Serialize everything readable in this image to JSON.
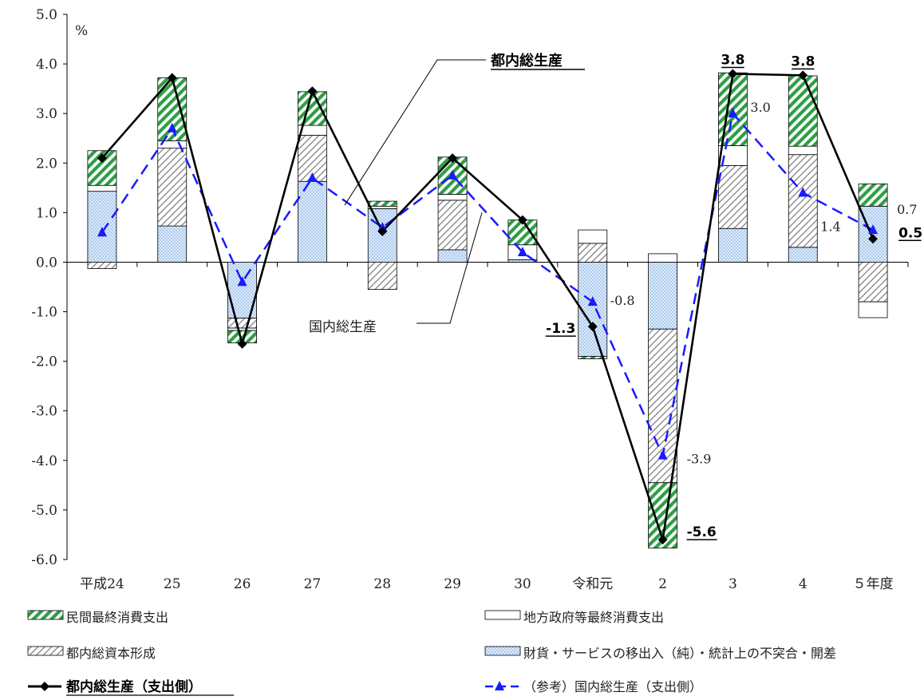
{
  "unit_label": "%",
  "colors": {
    "private_consumption": "#2e9e45",
    "government_consumption": "#ffffff",
    "capital_formation": "#9a9a9a",
    "net_exports": "#8ab4e8",
    "tokyo_line": "#000000",
    "national_line": "#1a1aff"
  },
  "chart_data": {
    "type": "bar",
    "stacked": true,
    "categories": [
      "平成24",
      "25",
      "26",
      "27",
      "28",
      "29",
      "30",
      "令和元",
      "2",
      "3",
      "4",
      "５年度"
    ],
    "ylim": [
      -6.0,
      5.0
    ],
    "yticks": [
      "5.0",
      "4.0",
      "3.0",
      "2.0",
      "1.0",
      "0.0",
      "-1.0",
      "-2.0",
      "-3.0",
      "-4.0",
      "-5.0",
      "-6.0"
    ],
    "ytick_values": [
      5,
      4,
      3,
      2,
      1,
      0,
      -1,
      -2,
      -3,
      -4,
      -5,
      -6
    ],
    "grid": false,
    "series": [
      {
        "name": "財貨・サービスの移出入（純）・統計上の不突合・開差",
        "key": "net_exports",
        "values": [
          1.43,
          0.73,
          -1.13,
          1.63,
          1.08,
          0.25,
          0.05,
          -1.9,
          -1.35,
          0.68,
          0.3,
          1.13
        ]
      },
      {
        "name": "都内総資本形成",
        "key": "capital_formation",
        "values": [
          -0.13,
          1.57,
          -0.2,
          0.93,
          -0.55,
          1.0,
          0.0,
          0.38,
          -3.1,
          1.27,
          1.87,
          -0.8
        ]
      },
      {
        "name": "地方政府等最終消費支出",
        "key": "government_consumption",
        "values": [
          0.12,
          0.15,
          -0.05,
          0.2,
          0.05,
          0.12,
          0.3,
          0.27,
          0.17,
          0.4,
          0.17,
          -0.32
        ]
      },
      {
        "name": "民間最終消費支出",
        "key": "private_consumption",
        "values": [
          0.7,
          1.27,
          -0.25,
          0.68,
          0.1,
          0.75,
          0.5,
          -0.05,
          -1.32,
          1.47,
          1.42,
          0.45
        ]
      }
    ],
    "lines": [
      {
        "name": "都内総生産（支出側）",
        "key": "tokyo",
        "values": [
          2.1,
          3.72,
          -1.65,
          3.45,
          0.62,
          2.1,
          0.85,
          -1.3,
          -5.6,
          3.8,
          3.77,
          0.47
        ]
      },
      {
        "name": "（参考）国内総生産（支出側）",
        "key": "national",
        "values": [
          0.6,
          2.7,
          -0.4,
          1.7,
          0.7,
          1.75,
          0.2,
          -0.8,
          -3.9,
          3.0,
          1.4,
          0.65
        ]
      }
    ],
    "annotations": {
      "tokyo": [
        {
          "index": 7,
          "text": "-1.3"
        },
        {
          "index": 8,
          "text": "-5.6"
        },
        {
          "index": 9,
          "text": "3.8"
        },
        {
          "index": 10,
          "text": "3.8"
        },
        {
          "index": 11,
          "text": "0.5"
        }
      ],
      "national": [
        {
          "index": 7,
          "text": "-0.8"
        },
        {
          "index": 8,
          "text": "-3.9"
        },
        {
          "index": 9,
          "text": "3.0"
        },
        {
          "index": 10,
          "text": "1.4"
        },
        {
          "index": 11,
          "text": "0.7"
        }
      ]
    },
    "callouts": {
      "tokyo": "都内総生産",
      "national": "国内総生産"
    }
  },
  "legend": {
    "items": [
      {
        "key": "private_consumption",
        "label": "民間最終消費支出"
      },
      {
        "key": "government_consumption",
        "label": "地方政府等最終消費支出"
      },
      {
        "key": "capital_formation",
        "label": "都内総資本形成"
      },
      {
        "key": "net_exports",
        "label": "財貨・サービスの移出入（純）・統計上の不突合・開差"
      },
      {
        "key": "tokyo",
        "label": "都内総生産（支出側）"
      },
      {
        "key": "national",
        "label": "（参考）国内総生産（支出側）"
      }
    ]
  }
}
